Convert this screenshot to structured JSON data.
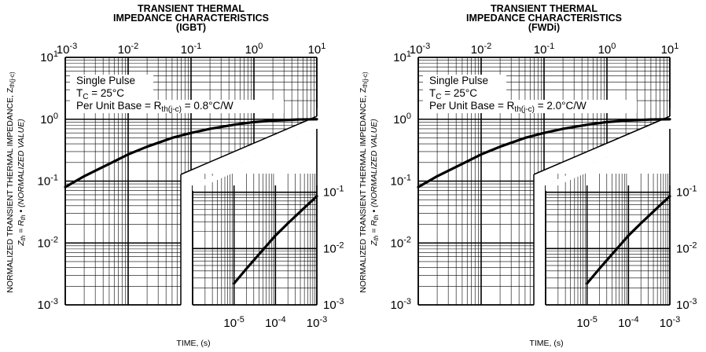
{
  "chart_data": [
    {
      "type": "line",
      "title": [
        "TRANSIENT THERMAL",
        "IMPEDANCE CHARACTERISTICS",
        "(IGBT)"
      ],
      "ylabel": {
        "main": "NORMALIZED TRANSIENT THERMAL IMPEDANCE, Z",
        "main_sub": "th(j-c)",
        "formula_z": "Z",
        "formula_z_sub": "th",
        "formula_mid": " = R",
        "formula_r_sub": "th",
        "formula_end": " • (NORMALIZED VALUE)"
      },
      "xlabel": "TIME, (s)",
      "annotations": {
        "pulse": "Single Pulse",
        "tc_main": "T",
        "tc_sub": "C",
        "tc_rest": " = 25°C",
        "base_main": "Per Unit Base = R",
        "base_sub": "th(j-c)",
        "base_rest": " = 0.8°C/W"
      },
      "upper_panel": {
        "x_axis": "top",
        "x_scale": "log",
        "y_scale": "log",
        "xlim": [
          0.001,
          10
        ],
        "ylim": [
          0.001,
          10
        ],
        "x_ticks": [
          {
            "base": "10",
            "exp": "-3"
          },
          {
            "base": "10",
            "exp": "-2"
          },
          {
            "base": "10",
            "exp": "-1"
          },
          {
            "base": "10",
            "exp": "0"
          },
          {
            "base": "10",
            "exp": "1"
          }
        ],
        "y_ticks": [
          {
            "base": "10",
            "exp": "1"
          },
          {
            "base": "10",
            "exp": "0"
          },
          {
            "base": "10",
            "exp": "-1"
          },
          {
            "base": "10",
            "exp": "-2"
          },
          {
            "base": "10",
            "exp": "-3"
          }
        ],
        "grid": true,
        "series": [
          {
            "x": [
              0.001,
              0.002,
              0.005,
              0.01,
              0.02,
              0.05,
              0.1,
              0.2,
              0.5,
              1,
              2,
              5,
              10
            ],
            "y": [
              0.08,
              0.12,
              0.19,
              0.27,
              0.36,
              0.5,
              0.6,
              0.7,
              0.82,
              0.9,
              0.95,
              0.99,
              1.0
            ]
          }
        ]
      },
      "lower_panel": {
        "x_axis": "bottom",
        "x_scale": "log",
        "y_scale": "log",
        "xlim": [
          1e-06,
          0.001
        ],
        "ylim": [
          0.001,
          1
        ],
        "x_ticks": [
          {
            "base": "10",
            "exp": "-5"
          },
          {
            "base": "10",
            "exp": "-4"
          },
          {
            "base": "10",
            "exp": "-3"
          }
        ],
        "y_ticks": [
          {
            "base": "10",
            "exp": "-1"
          },
          {
            "base": "10",
            "exp": "-2"
          },
          {
            "base": "10",
            "exp": "-3"
          }
        ],
        "grid": true,
        "series": [
          {
            "x": [
              1e-05,
              2e-05,
              5e-05,
              0.0001,
              0.0002,
              0.0005,
              0.001
            ],
            "y": [
              0.0024,
              0.0044,
              0.0095,
              0.017,
              0.028,
              0.053,
              0.085
            ]
          }
        ]
      }
    },
    {
      "type": "line",
      "title": [
        "TRANSIENT THERMAL",
        "IMPEDANCE CHARACTERISTICS",
        "(FWDi)"
      ],
      "ylabel": {
        "main": "NORMALIZED TRANSIENT THERMAL IMPEDANCE, Z",
        "main_sub": "th(j-c)",
        "formula_z": "Z",
        "formula_z_sub": "th",
        "formula_mid": " = R",
        "formula_r_sub": "th",
        "formula_end": " • (NORMALIZED VALUE)"
      },
      "xlabel": "TIME, (s)",
      "annotations": {
        "pulse": "Single Pulse",
        "tc_main": "T",
        "tc_sub": "C",
        "tc_rest": " = 25°C",
        "base_main": "Per Unit Base = R",
        "base_sub": "th(j-c)",
        "base_rest": " = 2.0°C/W"
      },
      "upper_panel": {
        "x_axis": "top",
        "x_scale": "log",
        "y_scale": "log",
        "xlim": [
          0.001,
          10
        ],
        "ylim": [
          0.001,
          10
        ],
        "x_ticks": [
          {
            "base": "10",
            "exp": "-3"
          },
          {
            "base": "10",
            "exp": "-2"
          },
          {
            "base": "10",
            "exp": "-1"
          },
          {
            "base": "10",
            "exp": "0"
          },
          {
            "base": "10",
            "exp": "1"
          }
        ],
        "y_ticks": [
          {
            "base": "10",
            "exp": "1"
          },
          {
            "base": "10",
            "exp": "0"
          },
          {
            "base": "10",
            "exp": "-1"
          },
          {
            "base": "10",
            "exp": "-2"
          },
          {
            "base": "10",
            "exp": "-3"
          }
        ],
        "grid": true,
        "series": [
          {
            "x": [
              0.001,
              0.002,
              0.005,
              0.01,
              0.02,
              0.05,
              0.1,
              0.2,
              0.5,
              1,
              2,
              5,
              10
            ],
            "y": [
              0.08,
              0.12,
              0.19,
              0.27,
              0.36,
              0.5,
              0.6,
              0.7,
              0.82,
              0.9,
              0.95,
              0.99,
              1.0
            ]
          }
        ]
      },
      "lower_panel": {
        "x_axis": "bottom",
        "x_scale": "log",
        "y_scale": "log",
        "xlim": [
          1e-06,
          0.001
        ],
        "ylim": [
          0.001,
          1
        ],
        "x_ticks": [
          {
            "base": "10",
            "exp": "-5"
          },
          {
            "base": "10",
            "exp": "-4"
          },
          {
            "base": "10",
            "exp": "-3"
          }
        ],
        "y_ticks": [
          {
            "base": "10",
            "exp": "-1"
          },
          {
            "base": "10",
            "exp": "-2"
          },
          {
            "base": "10",
            "exp": "-3"
          }
        ],
        "grid": true,
        "series": [
          {
            "x": [
              1e-05,
              2e-05,
              5e-05,
              0.0001,
              0.0002,
              0.0005,
              0.001
            ],
            "y": [
              0.0024,
              0.0044,
              0.0095,
              0.017,
              0.028,
              0.053,
              0.085
            ]
          }
        ]
      }
    }
  ]
}
